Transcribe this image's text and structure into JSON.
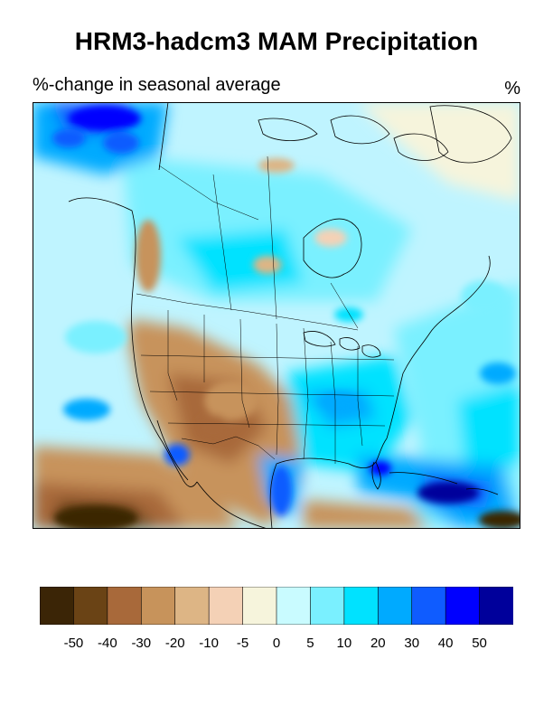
{
  "title": "HRM3-hadcm3 MAM Precipitation",
  "subtitle": "%-change in seasonal average",
  "units": "%",
  "map": {
    "region": "North America",
    "colors": {
      "ocean_base": "#bff4ff",
      "land_base": "#dcc39a",
      "border": "#000000"
    }
  },
  "colorbar": {
    "colors": [
      "#3b2506",
      "#6a4315",
      "#a8693a",
      "#c7935b",
      "#ddb585",
      "#f4d1b6",
      "#f6f4dc",
      "#c9fbff",
      "#7af0ff",
      "#00e2ff",
      "#00aaff",
      "#0f5cff",
      "#0000ff",
      "#00009b"
    ],
    "tick_labels": [
      "-50",
      "-40",
      "-30",
      "-20",
      "-10",
      "-5",
      "0",
      "5",
      "10",
      "20",
      "30",
      "40",
      "50"
    ]
  }
}
